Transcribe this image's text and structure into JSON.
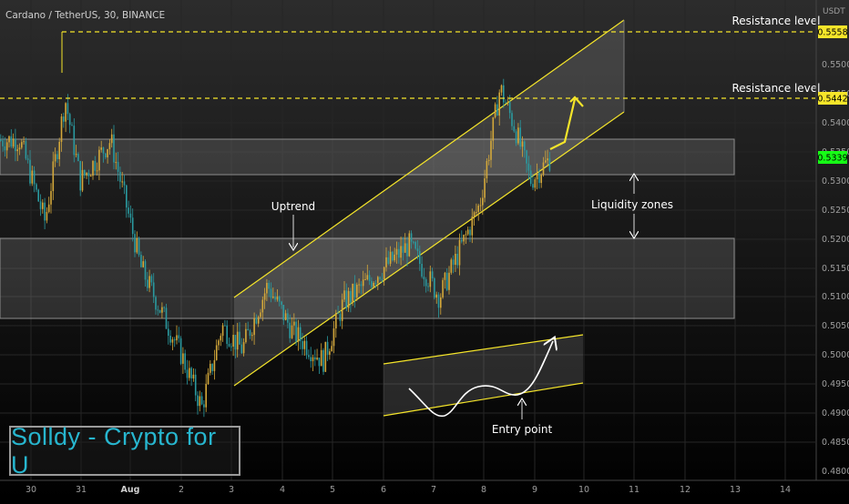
{
  "header": {
    "symbol_line": "Cardano / TetherUS, 30, BINANCE"
  },
  "price_axis": {
    "currency": "USDT",
    "ticks": [
      "0.5500",
      "0.5450",
      "0.5400",
      "0.5350",
      "0.5300",
      "0.5250",
      "0.5200",
      "0.5150",
      "0.5100",
      "0.5050",
      "0.5000",
      "0.4950",
      "0.4900",
      "0.4850",
      "0.4800"
    ],
    "badges": [
      {
        "value": "0.5558",
        "color": "#f5e52a"
      },
      {
        "value": "0.5442",
        "color": "#f5e52a"
      },
      {
        "value": "0.5339",
        "color": "#16ff16"
      }
    ]
  },
  "time_axis": {
    "ticks": [
      "30",
      "31",
      "Aug",
      "2",
      "3",
      "4",
      "5",
      "6",
      "7",
      "8",
      "9",
      "10",
      "11",
      "12",
      "13",
      "14"
    ]
  },
  "annotations": {
    "resistance_top": "Resistance level",
    "resistance_mid": "Resistance level",
    "uptrend": "Uptrend",
    "liquidity": "Liquidity zones",
    "entry": "Entry point"
  },
  "watermark": {
    "text": "Solldy - Crypto for U"
  },
  "colors": {
    "background": "#000000",
    "bull": "#d4a83a",
    "bear": "#2a9aa0",
    "annotation": "#f5e52a",
    "zone_fill": "rgba(255,255,255,0.13)"
  },
  "chart_data": {
    "type": "candlestick",
    "symbol": "ADA/USDT",
    "timeframe": "30",
    "ylim": [
      0.478,
      0.559
    ],
    "resistance_levels": [
      0.5558,
      0.5442
    ],
    "current_price": 0.5339,
    "liquidity_zones": [
      [
        0.5309,
        0.5372
      ],
      [
        0.5063,
        0.5201
      ]
    ],
    "channel": {
      "start": {
        "date": "Aug 3",
        "lower": 0.4945,
        "upper": 0.5095
      },
      "end": {
        "date": "Aug 10.8",
        "lower": 0.5415,
        "upper": 0.557
      }
    },
    "price_path": [
      {
        "date": "Jul 29.8",
        "price": 0.537
      },
      {
        "date": "Jul 30.3",
        "price": 0.523
      },
      {
        "date": "Jul 30.7",
        "price": 0.544
      },
      {
        "date": "Jul 31.0",
        "price": 0.53
      },
      {
        "date": "Jul 31.6",
        "price": 0.537
      },
      {
        "date": "Aug 1.2",
        "price": 0.515
      },
      {
        "date": "Aug 2.0",
        "price": 0.5
      },
      {
        "date": "Aug 2.4",
        "price": 0.491
      },
      {
        "date": "Aug 2.8",
        "price": 0.505
      },
      {
        "date": "Aug 3.2",
        "price": 0.501
      },
      {
        "date": "Aug 3.7",
        "price": 0.512
      },
      {
        "date": "Aug 4.2",
        "price": 0.504
      },
      {
        "date": "Aug 4.8",
        "price": 0.499
      },
      {
        "date": "Aug 5.2",
        "price": 0.509
      },
      {
        "date": "Aug 6.0",
        "price": 0.515
      },
      {
        "date": "Aug 6.5",
        "price": 0.519
      },
      {
        "date": "Aug 7.1",
        "price": 0.51
      },
      {
        "date": "Aug 7.5",
        "price": 0.518
      },
      {
        "date": "Aug 7.9",
        "price": 0.526
      },
      {
        "date": "Aug 8.3",
        "price": 0.546
      },
      {
        "date": "Aug 8.6",
        "price": 0.539
      },
      {
        "date": "Aug 8.9",
        "price": 0.53
      },
      {
        "date": "Aug 9.3",
        "price": 0.5339
      }
    ]
  }
}
